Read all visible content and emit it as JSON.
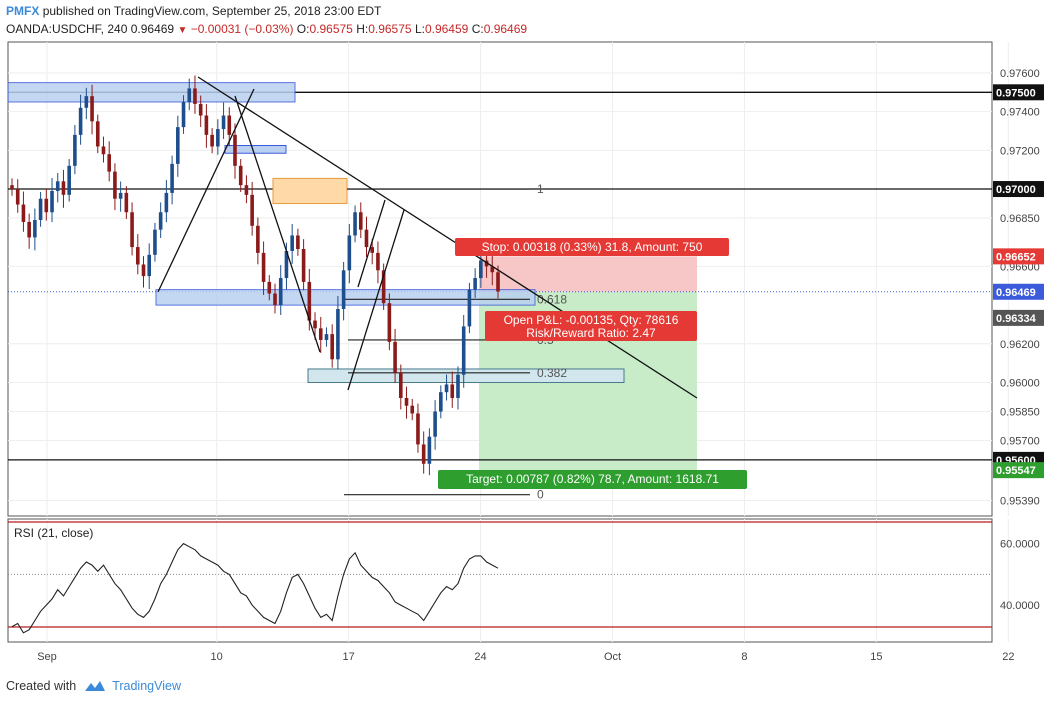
{
  "header": {
    "brand": "PMFX",
    "published": "published on TradingView.com, September 25, 2018 23:00 EDT",
    "symbol": "OANDA:USDCHF, 240",
    "last": "0.96469",
    "change": "−0.00031 (−0.03%)",
    "open_label": "O:",
    "open": "0.96575",
    "high_label": "H:",
    "high": "0.96575",
    "low_label": "L:",
    "low": "0.96459",
    "close_label": "C:",
    "close": "0.96469"
  },
  "footer": {
    "created_with": "Created with",
    "brand": "TradingView"
  },
  "colors": {
    "bull": "#1e4f8c",
    "bear": "#8b1a1a",
    "stop_zone": "#f7c6c6",
    "target_zone": "#c8ecc8",
    "stop_label": "#e53935",
    "target_label": "#2e9e2e",
    "zone_blue": "#b9d0f0",
    "zone_orange": "#ffd9a8"
  },
  "chart_data": {
    "type": "candlestick",
    "symbol": "OANDA:USDCHF",
    "timeframe": "240",
    "ylim": [
      0.9531,
      0.9776
    ],
    "y_ticks": [
      "0.97600",
      "0.97400",
      "0.97200",
      "0.96850",
      "0.96600",
      "0.96200",
      "0.96000",
      "0.95850",
      "0.95700",
      "0.95390"
    ],
    "x_tick_labels": [
      {
        "day": 0,
        "label": "Sep"
      },
      {
        "day": 9,
        "label": "10"
      },
      {
        "day": 16,
        "label": "17"
      },
      {
        "day": 23,
        "label": "24"
      },
      {
        "day": 30,
        "label": "Oct"
      },
      {
        "day": 37,
        "label": "8"
      },
      {
        "day": 44,
        "label": "15"
      },
      {
        "day": 51,
        "label": "22"
      }
    ],
    "price_line_labels": [
      {
        "price": 0.975,
        "text": "0.97500",
        "style": "black"
      },
      {
        "price": 0.97,
        "text": "0.97000",
        "style": "black"
      },
      {
        "price": 0.96652,
        "text": "0.96652",
        "style": "red"
      },
      {
        "price": 0.96469,
        "text": "0.96469",
        "style": "blue"
      },
      {
        "price": 0.96334,
        "text": "0.96334",
        "style": "gray"
      },
      {
        "price": 0.956,
        "text": "0.95600",
        "style": "black"
      },
      {
        "price": 0.95547,
        "text": "0.95547",
        "style": "green"
      }
    ],
    "fib_levels": [
      {
        "label": "1",
        "price": 0.97
      },
      {
        "label": "0.618",
        "price": 0.9643
      },
      {
        "label": "0.5",
        "price": 0.9622
      },
      {
        "label": "0.382",
        "price": 0.9605
      },
      {
        "label": "0",
        "price": 0.9542
      }
    ],
    "position": {
      "stop_label": "Stop: 0.00318 (0.33%) 31.8, Amount: 750",
      "pnl_label": "Open P&L: -0.00135, Qty: 78616",
      "rr_label": "Risk/Reward Ratio: 2.47",
      "target_label": "Target: 0.00787 (0.82%) 78.7, Amount: 1618.71"
    },
    "closes": [
      0.97,
      0.9692,
      0.9683,
      0.9675,
      0.9684,
      0.9695,
      0.9688,
      0.9699,
      0.9704,
      0.9697,
      0.9712,
      0.9728,
      0.9742,
      0.9748,
      0.9735,
      0.9722,
      0.9718,
      0.9709,
      0.9695,
      0.9698,
      0.9688,
      0.967,
      0.9661,
      0.9655,
      0.9666,
      0.9679,
      0.9688,
      0.9698,
      0.9713,
      0.9732,
      0.9745,
      0.9752,
      0.9744,
      0.9738,
      0.9728,
      0.9722,
      0.9731,
      0.9738,
      0.9728,
      0.9712,
      0.9702,
      0.9697,
      0.9681,
      0.9667,
      0.9652,
      0.9646,
      0.964,
      0.9654,
      0.9668,
      0.9676,
      0.9669,
      0.9652,
      0.9632,
      0.9628,
      0.9622,
      0.9625,
      0.9612,
      0.9638,
      0.9658,
      0.9676,
      0.9688,
      0.9679,
      0.967,
      0.9667,
      0.9658,
      0.9641,
      0.9621,
      0.9605,
      0.9592,
      0.9588,
      0.9584,
      0.9568,
      0.9558,
      0.9572,
      0.9585,
      0.9595,
      0.9599,
      0.9592,
      0.9604,
      0.9629,
      0.9648,
      0.9654,
      0.9663,
      0.966,
      0.9657,
      0.9647
    ],
    "rsi": {
      "label": "RSI (21, close)",
      "levels": [
        "60.0000",
        "40.0000"
      ],
      "values": [
        33,
        34,
        31,
        32,
        35,
        38,
        40,
        42,
        45,
        43,
        46,
        49,
        52,
        54,
        53,
        51,
        53,
        50,
        47,
        45,
        42,
        39,
        37,
        36,
        38,
        42,
        47,
        50,
        54,
        58,
        60,
        59,
        58,
        56,
        55,
        54,
        53,
        51,
        50,
        47,
        44,
        43,
        40,
        38,
        36,
        35,
        34,
        38,
        44,
        49,
        50,
        47,
        43,
        39,
        36,
        37,
        35,
        43,
        50,
        55,
        57,
        53,
        51,
        49,
        48,
        46,
        44,
        41,
        40,
        39,
        38,
        37,
        35,
        38,
        41,
        44,
        46,
        45,
        47,
        52,
        55,
        56,
        56,
        54,
        53,
        52
      ]
    }
  }
}
